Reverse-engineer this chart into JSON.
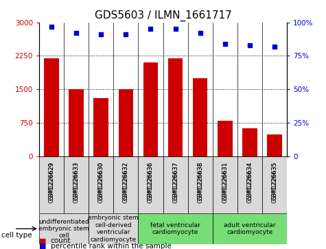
{
  "title": "GDS5603 / ILMN_1661717",
  "samples": [
    "GSM1226629",
    "GSM1226633",
    "GSM1226630",
    "GSM1226632",
    "GSM1226636",
    "GSM1226637",
    "GSM1226638",
    "GSM1226631",
    "GSM1226634",
    "GSM1226635"
  ],
  "counts": [
    2200,
    1500,
    1300,
    1500,
    2100,
    2200,
    1750,
    800,
    620,
    480
  ],
  "percentiles": [
    97,
    92,
    91,
    91,
    95,
    95,
    92,
    84,
    83,
    82
  ],
  "ylim_left": [
    0,
    3000
  ],
  "ylim_right": [
    0,
    100
  ],
  "yticks_left": [
    0,
    750,
    1500,
    2250,
    3000
  ],
  "yticks_right": [
    0,
    25,
    50,
    75,
    100
  ],
  "bar_color": "#cc0000",
  "dot_color": "#0000cc",
  "cell_types": [
    {
      "label": "undifferentiated\nembryonic stem\ncell",
      "start": 0,
      "end": 2,
      "color": "#d9d9d9"
    },
    {
      "label": "embryonic stem\ncell-derived\nventricular\ncardiomyocyte",
      "start": 2,
      "end": 4,
      "color": "#d9d9d9"
    },
    {
      "label": "fetal ventricular\ncardiomyocyte",
      "start": 4,
      "end": 7,
      "color": "#77dd77"
    },
    {
      "label": "adult ventricular\ncardiomyocyte",
      "start": 7,
      "end": 10,
      "color": "#77dd77"
    }
  ],
  "background_color": "#ffffff",
  "tick_label_color_left": "#cc0000",
  "tick_label_color_right": "#0000cc",
  "title_fontsize": 11,
  "cell_type_label_fontsize": 6.5,
  "legend_fontsize": 7.5
}
